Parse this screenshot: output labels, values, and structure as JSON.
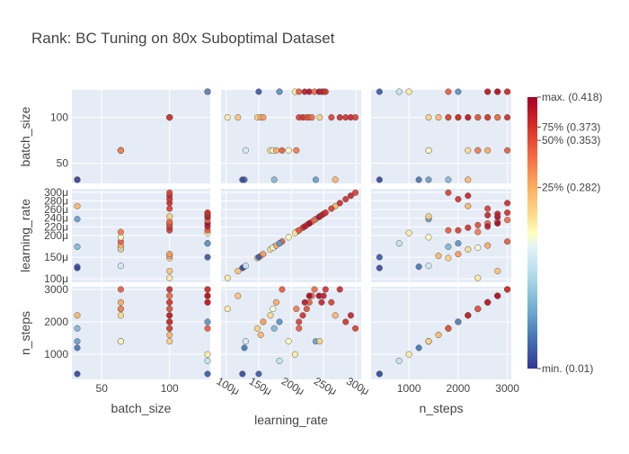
{
  "chart_data": {
    "type": "scatter",
    "title": "Rank: BC Tuning on 80x Suboptimal Dataset",
    "dimensions": [
      "batch_size",
      "learning_rate",
      "n_steps"
    ],
    "axes": {
      "batch_size": {
        "label": "batch_size",
        "range": [
          28,
          130
        ],
        "ticks": [
          50,
          100
        ],
        "diag_ticks": [
          50,
          100
        ],
        "diag_tick_labels": [
          "50",
          "100"
        ]
      },
      "learning_rate": {
        "label": "learning_rate",
        "range": [
          9.2e-05,
          0.000308
        ],
        "ticks": [
          0.0001,
          0.00015,
          0.0002,
          0.00025,
          0.0003
        ],
        "tick_labels": [
          "100μ",
          "150μ",
          "200μ",
          "250μ",
          "300μ"
        ],
        "side_ticks": [
          0.0001,
          0.00015,
          0.0002,
          0.00022,
          0.00024,
          0.00026,
          0.00028,
          0.0003
        ],
        "side_tick_labels": [
          "100μ",
          "150μ",
          "200μ",
          "220μ",
          "240μ",
          "260μ",
          "280μ",
          "300μ"
        ]
      },
      "n_steps": {
        "label": "n_steps",
        "range": [
          230,
          3080
        ],
        "ticks": [
          1000,
          2000,
          3000
        ],
        "tick_labels": [
          "1000",
          "2000",
          "3000"
        ]
      }
    },
    "colorbar": {
      "colorscale": "RdYlBu_r",
      "cmin": 0.01,
      "cmax": 0.418,
      "ticks": [
        {
          "value": 0.418,
          "label": "max. (0.418)"
        },
        {
          "value": 0.373,
          "label": "75% (0.373)"
        },
        {
          "value": 0.353,
          "label": "50% (0.353)"
        },
        {
          "value": 0.282,
          "label": "25% (0.282)"
        },
        {
          "value": 0.01,
          "label": "min. (0.01)"
        }
      ]
    },
    "points": [
      {
        "batch_size": 32,
        "learning_rate": 0.000128,
        "n_steps": 1200,
        "rank": 0.05
      },
      {
        "batch_size": 32,
        "learning_rate": 0.000174,
        "n_steps": 1800,
        "rank": 0.1
      },
      {
        "batch_size": 32,
        "learning_rate": 0.000238,
        "n_steps": 1400,
        "rank": 0.08
      },
      {
        "batch_size": 32,
        "learning_rate": 0.000268,
        "n_steps": 2200,
        "rank": 0.29
      },
      {
        "batch_size": 32,
        "learning_rate": 0.000125,
        "n_steps": 400,
        "rank": 0.02
      },
      {
        "batch_size": 64,
        "learning_rate": 0.00013,
        "n_steps": 1400,
        "rank": 0.16
      },
      {
        "batch_size": 64,
        "learning_rate": 0.000168,
        "n_steps": 2200,
        "rank": 0.26
      },
      {
        "batch_size": 64,
        "learning_rate": 0.000172,
        "n_steps": 2400,
        "rank": 0.2
      },
      {
        "batch_size": 64,
        "learning_rate": 0.000177,
        "n_steps": 2600,
        "rank": 0.3
      },
      {
        "batch_size": 64,
        "learning_rate": 0.000186,
        "n_steps": 3000,
        "rank": 0.35
      },
      {
        "batch_size": 64,
        "learning_rate": 0.000196,
        "n_steps": 1400,
        "rank": 0.22
      },
      {
        "batch_size": 64,
        "learning_rate": 0.000208,
        "n_steps": 2400,
        "rank": 0.33
      },
      {
        "batch_size": 100,
        "learning_rate": 0.000102,
        "n_steps": 2400,
        "rank": 0.24
      },
      {
        "batch_size": 100,
        "learning_rate": 0.000118,
        "n_steps": 2800,
        "rank": 0.28
      },
      {
        "batch_size": 100,
        "learning_rate": 0.000148,
        "n_steps": 1800,
        "rank": 0.27
      },
      {
        "batch_size": 100,
        "learning_rate": 0.000153,
        "n_steps": 1600,
        "rank": 0.29
      },
      {
        "batch_size": 100,
        "learning_rate": 0.000157,
        "n_steps": 2000,
        "rank": 0.31
      },
      {
        "batch_size": 100,
        "learning_rate": 0.000212,
        "n_steps": 2000,
        "rank": 0.37
      },
      {
        "batch_size": 100,
        "learning_rate": 0.000218,
        "n_steps": 2200,
        "rank": 0.38
      },
      {
        "batch_size": 100,
        "learning_rate": 0.000224,
        "n_steps": 2400,
        "rank": 0.36
      },
      {
        "batch_size": 100,
        "learning_rate": 0.000228,
        "n_steps": 2600,
        "rank": 0.35
      },
      {
        "batch_size": 100,
        "learning_rate": 0.000232,
        "n_steps": 2800,
        "rank": 0.34
      },
      {
        "batch_size": 100,
        "learning_rate": 0.000244,
        "n_steps": 1400,
        "rank": 0.27
      },
      {
        "batch_size": 100,
        "learning_rate": 0.000262,
        "n_steps": 2600,
        "rank": 0.37
      },
      {
        "batch_size": 100,
        "learning_rate": 0.000275,
        "n_steps": 3000,
        "rank": 0.385
      },
      {
        "batch_size": 100,
        "learning_rate": 0.000284,
        "n_steps": 2000,
        "rank": 0.38
      },
      {
        "batch_size": 100,
        "learning_rate": 0.000292,
        "n_steps": 2200,
        "rank": 0.39
      },
      {
        "batch_size": 100,
        "learning_rate": 0.000299,
        "n_steps": 1800,
        "rank": 0.37
      },
      {
        "batch_size": 128,
        "learning_rate": 0.00015,
        "n_steps": 400,
        "rank": 0.03
      },
      {
        "batch_size": 128,
        "learning_rate": 0.000182,
        "n_steps": 800,
        "rank": 0.15
      },
      {
        "batch_size": 128,
        "learning_rate": 0.000206,
        "n_steps": 1000,
        "rank": 0.24
      },
      {
        "batch_size": 128,
        "learning_rate": 0.000212,
        "n_steps": 1800,
        "rank": 0.35
      },
      {
        "batch_size": 128,
        "learning_rate": 0.000221,
        "n_steps": 2600,
        "rank": 0.4
      },
      {
        "batch_size": 128,
        "learning_rate": 0.000228,
        "n_steps": 2800,
        "rank": 0.41
      },
      {
        "batch_size": 128,
        "learning_rate": 0.000236,
        "n_steps": 3000,
        "rank": 0.34
      },
      {
        "batch_size": 128,
        "learning_rate": 0.000243,
        "n_steps": 2800,
        "rank": 0.415
      },
      {
        "batch_size": 128,
        "learning_rate": 0.000247,
        "n_steps": 2600,
        "rank": 0.39
      },
      {
        "batch_size": 128,
        "learning_rate": 0.00025,
        "n_steps": 2800,
        "rank": 0.395
      },
      {
        "batch_size": 128,
        "learning_rate": 0.000253,
        "n_steps": 3000,
        "rank": 0.38
      },
      {
        "batch_size": 128,
        "learning_rate": 0.000182,
        "n_steps": 2000,
        "rank": 0.07
      }
    ]
  }
}
